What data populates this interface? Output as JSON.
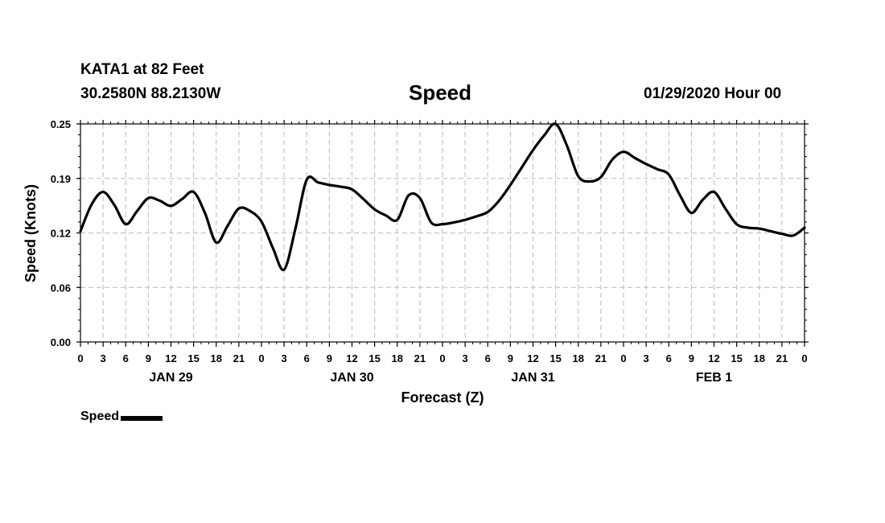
{
  "header": {
    "station": "KATA1 at 82 Feet",
    "coords": "30.2580N 88.2130W",
    "title": "Speed",
    "run_time": "01/29/2020 Hour 00"
  },
  "legend": {
    "label": "Speed"
  },
  "colors": {
    "line": "#000000",
    "grid": "#bbbbbb",
    "background": "#ffffff"
  },
  "chart_data": {
    "type": "line",
    "title": "Speed",
    "xlabel": "Forecast (Z)",
    "ylabel": "Speed (Knots)",
    "ylim": [
      0,
      0.25
    ],
    "xlim": [
      0,
      96
    ],
    "yticks": [
      "0.00",
      "0.06",
      "0.12",
      "0.19",
      "0.25"
    ],
    "ytick_values": [
      0,
      0.0625,
      0.125,
      0.1875,
      0.25
    ],
    "xtick_labels": [
      "0",
      "3",
      "6",
      "9",
      "12",
      "15",
      "18",
      "21",
      "0",
      "3",
      "6",
      "9",
      "12",
      "15",
      "18",
      "21",
      "0",
      "3",
      "6",
      "9",
      "12",
      "15",
      "18",
      "21",
      "0",
      "3",
      "6",
      "9",
      "12",
      "15",
      "18",
      "21",
      "0"
    ],
    "day_labels": [
      {
        "label": "JAN 29",
        "x": 12
      },
      {
        "label": "JAN 30",
        "x": 36
      },
      {
        "label": "JAN 31",
        "x": 60
      },
      {
        "label": "FEB 1",
        "x": 84
      }
    ],
    "grid": true,
    "legend_position": "bottom-left",
    "series": [
      {
        "name": "Speed",
        "x": [
          0,
          1.5,
          3,
          4.5,
          6,
          7.5,
          9,
          10.5,
          12,
          13.5,
          15,
          16.5,
          18,
          19.5,
          21,
          22.5,
          24,
          25.5,
          27,
          28.5,
          30,
          31.5,
          33,
          34.5,
          36,
          37.5,
          39,
          40.5,
          42,
          43.5,
          45,
          46.5,
          48,
          49.5,
          51,
          52.5,
          54,
          55.5,
          57,
          58.5,
          60,
          61.5,
          63,
          64.5,
          66,
          67.5,
          69,
          70.5,
          72,
          73.5,
          75,
          76.5,
          78,
          79.5,
          81,
          82.5,
          84,
          85.5,
          87,
          88.5,
          90,
          91.5,
          93,
          94.5,
          96
        ],
        "y": [
          0.127,
          0.158,
          0.172,
          0.157,
          0.135,
          0.15,
          0.165,
          0.162,
          0.156,
          0.164,
          0.172,
          0.148,
          0.114,
          0.133,
          0.153,
          0.15,
          0.138,
          0.108,
          0.083,
          0.13,
          0.186,
          0.183,
          0.18,
          0.178,
          0.175,
          0.164,
          0.152,
          0.145,
          0.14,
          0.168,
          0.165,
          0.137,
          0.135,
          0.137,
          0.14,
          0.144,
          0.149,
          0.162,
          0.18,
          0.2,
          0.22,
          0.237,
          0.25,
          0.225,
          0.19,
          0.184,
          0.189,
          0.209,
          0.218,
          0.211,
          0.204,
          0.198,
          0.192,
          0.168,
          0.148,
          0.163,
          0.172,
          0.153,
          0.135,
          0.131,
          0.13,
          0.127,
          0.124,
          0.122,
          0.131
        ]
      }
    ]
  }
}
